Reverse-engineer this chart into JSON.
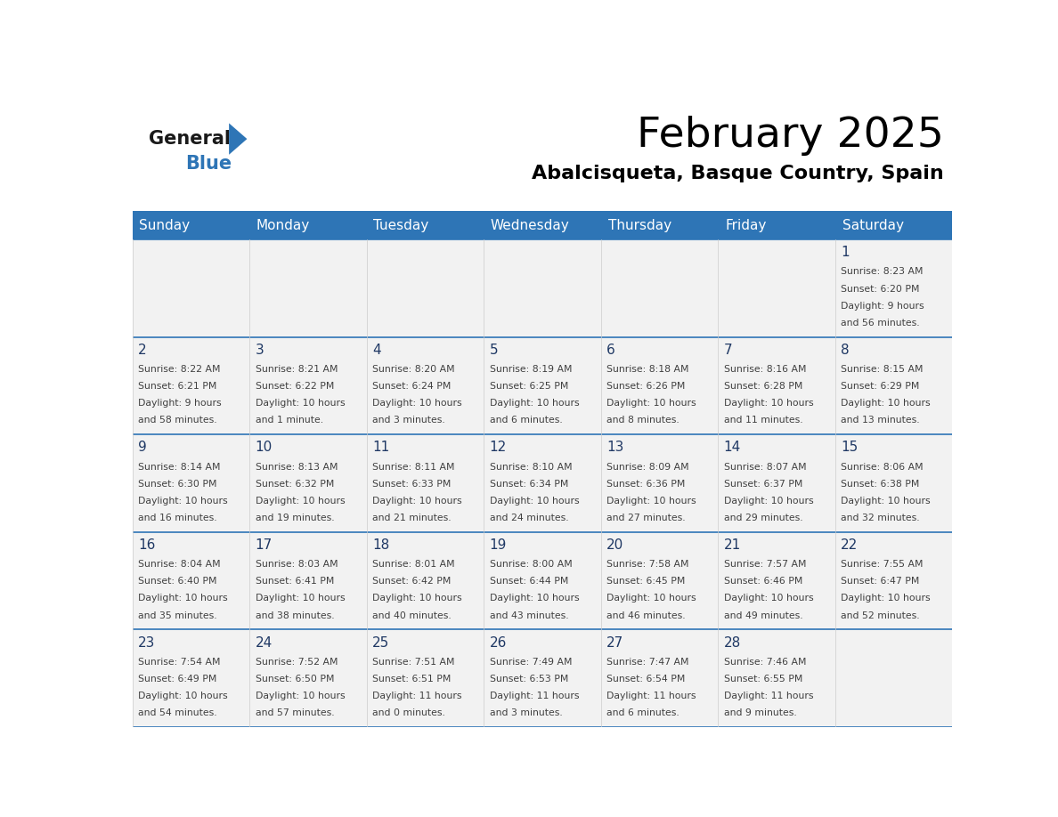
{
  "title": "February 2025",
  "subtitle": "Abalcisqueta, Basque Country, Spain",
  "days_of_week": [
    "Sunday",
    "Monday",
    "Tuesday",
    "Wednesday",
    "Thursday",
    "Friday",
    "Saturday"
  ],
  "header_bg": "#2E75B6",
  "header_text": "#FFFFFF",
  "cell_bg": "#F2F2F2",
  "day_number_color": "#1F3864",
  "text_color": "#404040",
  "line_color": "#2E75B6",
  "calendar_data": [
    {
      "day": 1,
      "col": 6,
      "row": 0,
      "sunrise": "8:23 AM",
      "sunset": "6:20 PM",
      "daylight_line1": "Daylight: 9 hours",
      "daylight_line2": "and 56 minutes."
    },
    {
      "day": 2,
      "col": 0,
      "row": 1,
      "sunrise": "8:22 AM",
      "sunset": "6:21 PM",
      "daylight_line1": "Daylight: 9 hours",
      "daylight_line2": "and 58 minutes."
    },
    {
      "day": 3,
      "col": 1,
      "row": 1,
      "sunrise": "8:21 AM",
      "sunset": "6:22 PM",
      "daylight_line1": "Daylight: 10 hours",
      "daylight_line2": "and 1 minute."
    },
    {
      "day": 4,
      "col": 2,
      "row": 1,
      "sunrise": "8:20 AM",
      "sunset": "6:24 PM",
      "daylight_line1": "Daylight: 10 hours",
      "daylight_line2": "and 3 minutes."
    },
    {
      "day": 5,
      "col": 3,
      "row": 1,
      "sunrise": "8:19 AM",
      "sunset": "6:25 PM",
      "daylight_line1": "Daylight: 10 hours",
      "daylight_line2": "and 6 minutes."
    },
    {
      "day": 6,
      "col": 4,
      "row": 1,
      "sunrise": "8:18 AM",
      "sunset": "6:26 PM",
      "daylight_line1": "Daylight: 10 hours",
      "daylight_line2": "and 8 minutes."
    },
    {
      "day": 7,
      "col": 5,
      "row": 1,
      "sunrise": "8:16 AM",
      "sunset": "6:28 PM",
      "daylight_line1": "Daylight: 10 hours",
      "daylight_line2": "and 11 minutes."
    },
    {
      "day": 8,
      "col": 6,
      "row": 1,
      "sunrise": "8:15 AM",
      "sunset": "6:29 PM",
      "daylight_line1": "Daylight: 10 hours",
      "daylight_line2": "and 13 minutes."
    },
    {
      "day": 9,
      "col": 0,
      "row": 2,
      "sunrise": "8:14 AM",
      "sunset": "6:30 PM",
      "daylight_line1": "Daylight: 10 hours",
      "daylight_line2": "and 16 minutes."
    },
    {
      "day": 10,
      "col": 1,
      "row": 2,
      "sunrise": "8:13 AM",
      "sunset": "6:32 PM",
      "daylight_line1": "Daylight: 10 hours",
      "daylight_line2": "and 19 minutes."
    },
    {
      "day": 11,
      "col": 2,
      "row": 2,
      "sunrise": "8:11 AM",
      "sunset": "6:33 PM",
      "daylight_line1": "Daylight: 10 hours",
      "daylight_line2": "and 21 minutes."
    },
    {
      "day": 12,
      "col": 3,
      "row": 2,
      "sunrise": "8:10 AM",
      "sunset": "6:34 PM",
      "daylight_line1": "Daylight: 10 hours",
      "daylight_line2": "and 24 minutes."
    },
    {
      "day": 13,
      "col": 4,
      "row": 2,
      "sunrise": "8:09 AM",
      "sunset": "6:36 PM",
      "daylight_line1": "Daylight: 10 hours",
      "daylight_line2": "and 27 minutes."
    },
    {
      "day": 14,
      "col": 5,
      "row": 2,
      "sunrise": "8:07 AM",
      "sunset": "6:37 PM",
      "daylight_line1": "Daylight: 10 hours",
      "daylight_line2": "and 29 minutes."
    },
    {
      "day": 15,
      "col": 6,
      "row": 2,
      "sunrise": "8:06 AM",
      "sunset": "6:38 PM",
      "daylight_line1": "Daylight: 10 hours",
      "daylight_line2": "and 32 minutes."
    },
    {
      "day": 16,
      "col": 0,
      "row": 3,
      "sunrise": "8:04 AM",
      "sunset": "6:40 PM",
      "daylight_line1": "Daylight: 10 hours",
      "daylight_line2": "and 35 minutes."
    },
    {
      "day": 17,
      "col": 1,
      "row": 3,
      "sunrise": "8:03 AM",
      "sunset": "6:41 PM",
      "daylight_line1": "Daylight: 10 hours",
      "daylight_line2": "and 38 minutes."
    },
    {
      "day": 18,
      "col": 2,
      "row": 3,
      "sunrise": "8:01 AM",
      "sunset": "6:42 PM",
      "daylight_line1": "Daylight: 10 hours",
      "daylight_line2": "and 40 minutes."
    },
    {
      "day": 19,
      "col": 3,
      "row": 3,
      "sunrise": "8:00 AM",
      "sunset": "6:44 PM",
      "daylight_line1": "Daylight: 10 hours",
      "daylight_line2": "and 43 minutes."
    },
    {
      "day": 20,
      "col": 4,
      "row": 3,
      "sunrise": "7:58 AM",
      "sunset": "6:45 PM",
      "daylight_line1": "Daylight: 10 hours",
      "daylight_line2": "and 46 minutes."
    },
    {
      "day": 21,
      "col": 5,
      "row": 3,
      "sunrise": "7:57 AM",
      "sunset": "6:46 PM",
      "daylight_line1": "Daylight: 10 hours",
      "daylight_line2": "and 49 minutes."
    },
    {
      "day": 22,
      "col": 6,
      "row": 3,
      "sunrise": "7:55 AM",
      "sunset": "6:47 PM",
      "daylight_line1": "Daylight: 10 hours",
      "daylight_line2": "and 52 minutes."
    },
    {
      "day": 23,
      "col": 0,
      "row": 4,
      "sunrise": "7:54 AM",
      "sunset": "6:49 PM",
      "daylight_line1": "Daylight: 10 hours",
      "daylight_line2": "and 54 minutes."
    },
    {
      "day": 24,
      "col": 1,
      "row": 4,
      "sunrise": "7:52 AM",
      "sunset": "6:50 PM",
      "daylight_line1": "Daylight: 10 hours",
      "daylight_line2": "and 57 minutes."
    },
    {
      "day": 25,
      "col": 2,
      "row": 4,
      "sunrise": "7:51 AM",
      "sunset": "6:51 PM",
      "daylight_line1": "Daylight: 11 hours",
      "daylight_line2": "and 0 minutes."
    },
    {
      "day": 26,
      "col": 3,
      "row": 4,
      "sunrise": "7:49 AM",
      "sunset": "6:53 PM",
      "daylight_line1": "Daylight: 11 hours",
      "daylight_line2": "and 3 minutes."
    },
    {
      "day": 27,
      "col": 4,
      "row": 4,
      "sunrise": "7:47 AM",
      "sunset": "6:54 PM",
      "daylight_line1": "Daylight: 11 hours",
      "daylight_line2": "and 6 minutes."
    },
    {
      "day": 28,
      "col": 5,
      "row": 4,
      "sunrise": "7:46 AM",
      "sunset": "6:55 PM",
      "daylight_line1": "Daylight: 11 hours",
      "daylight_line2": "and 9 minutes."
    }
  ]
}
